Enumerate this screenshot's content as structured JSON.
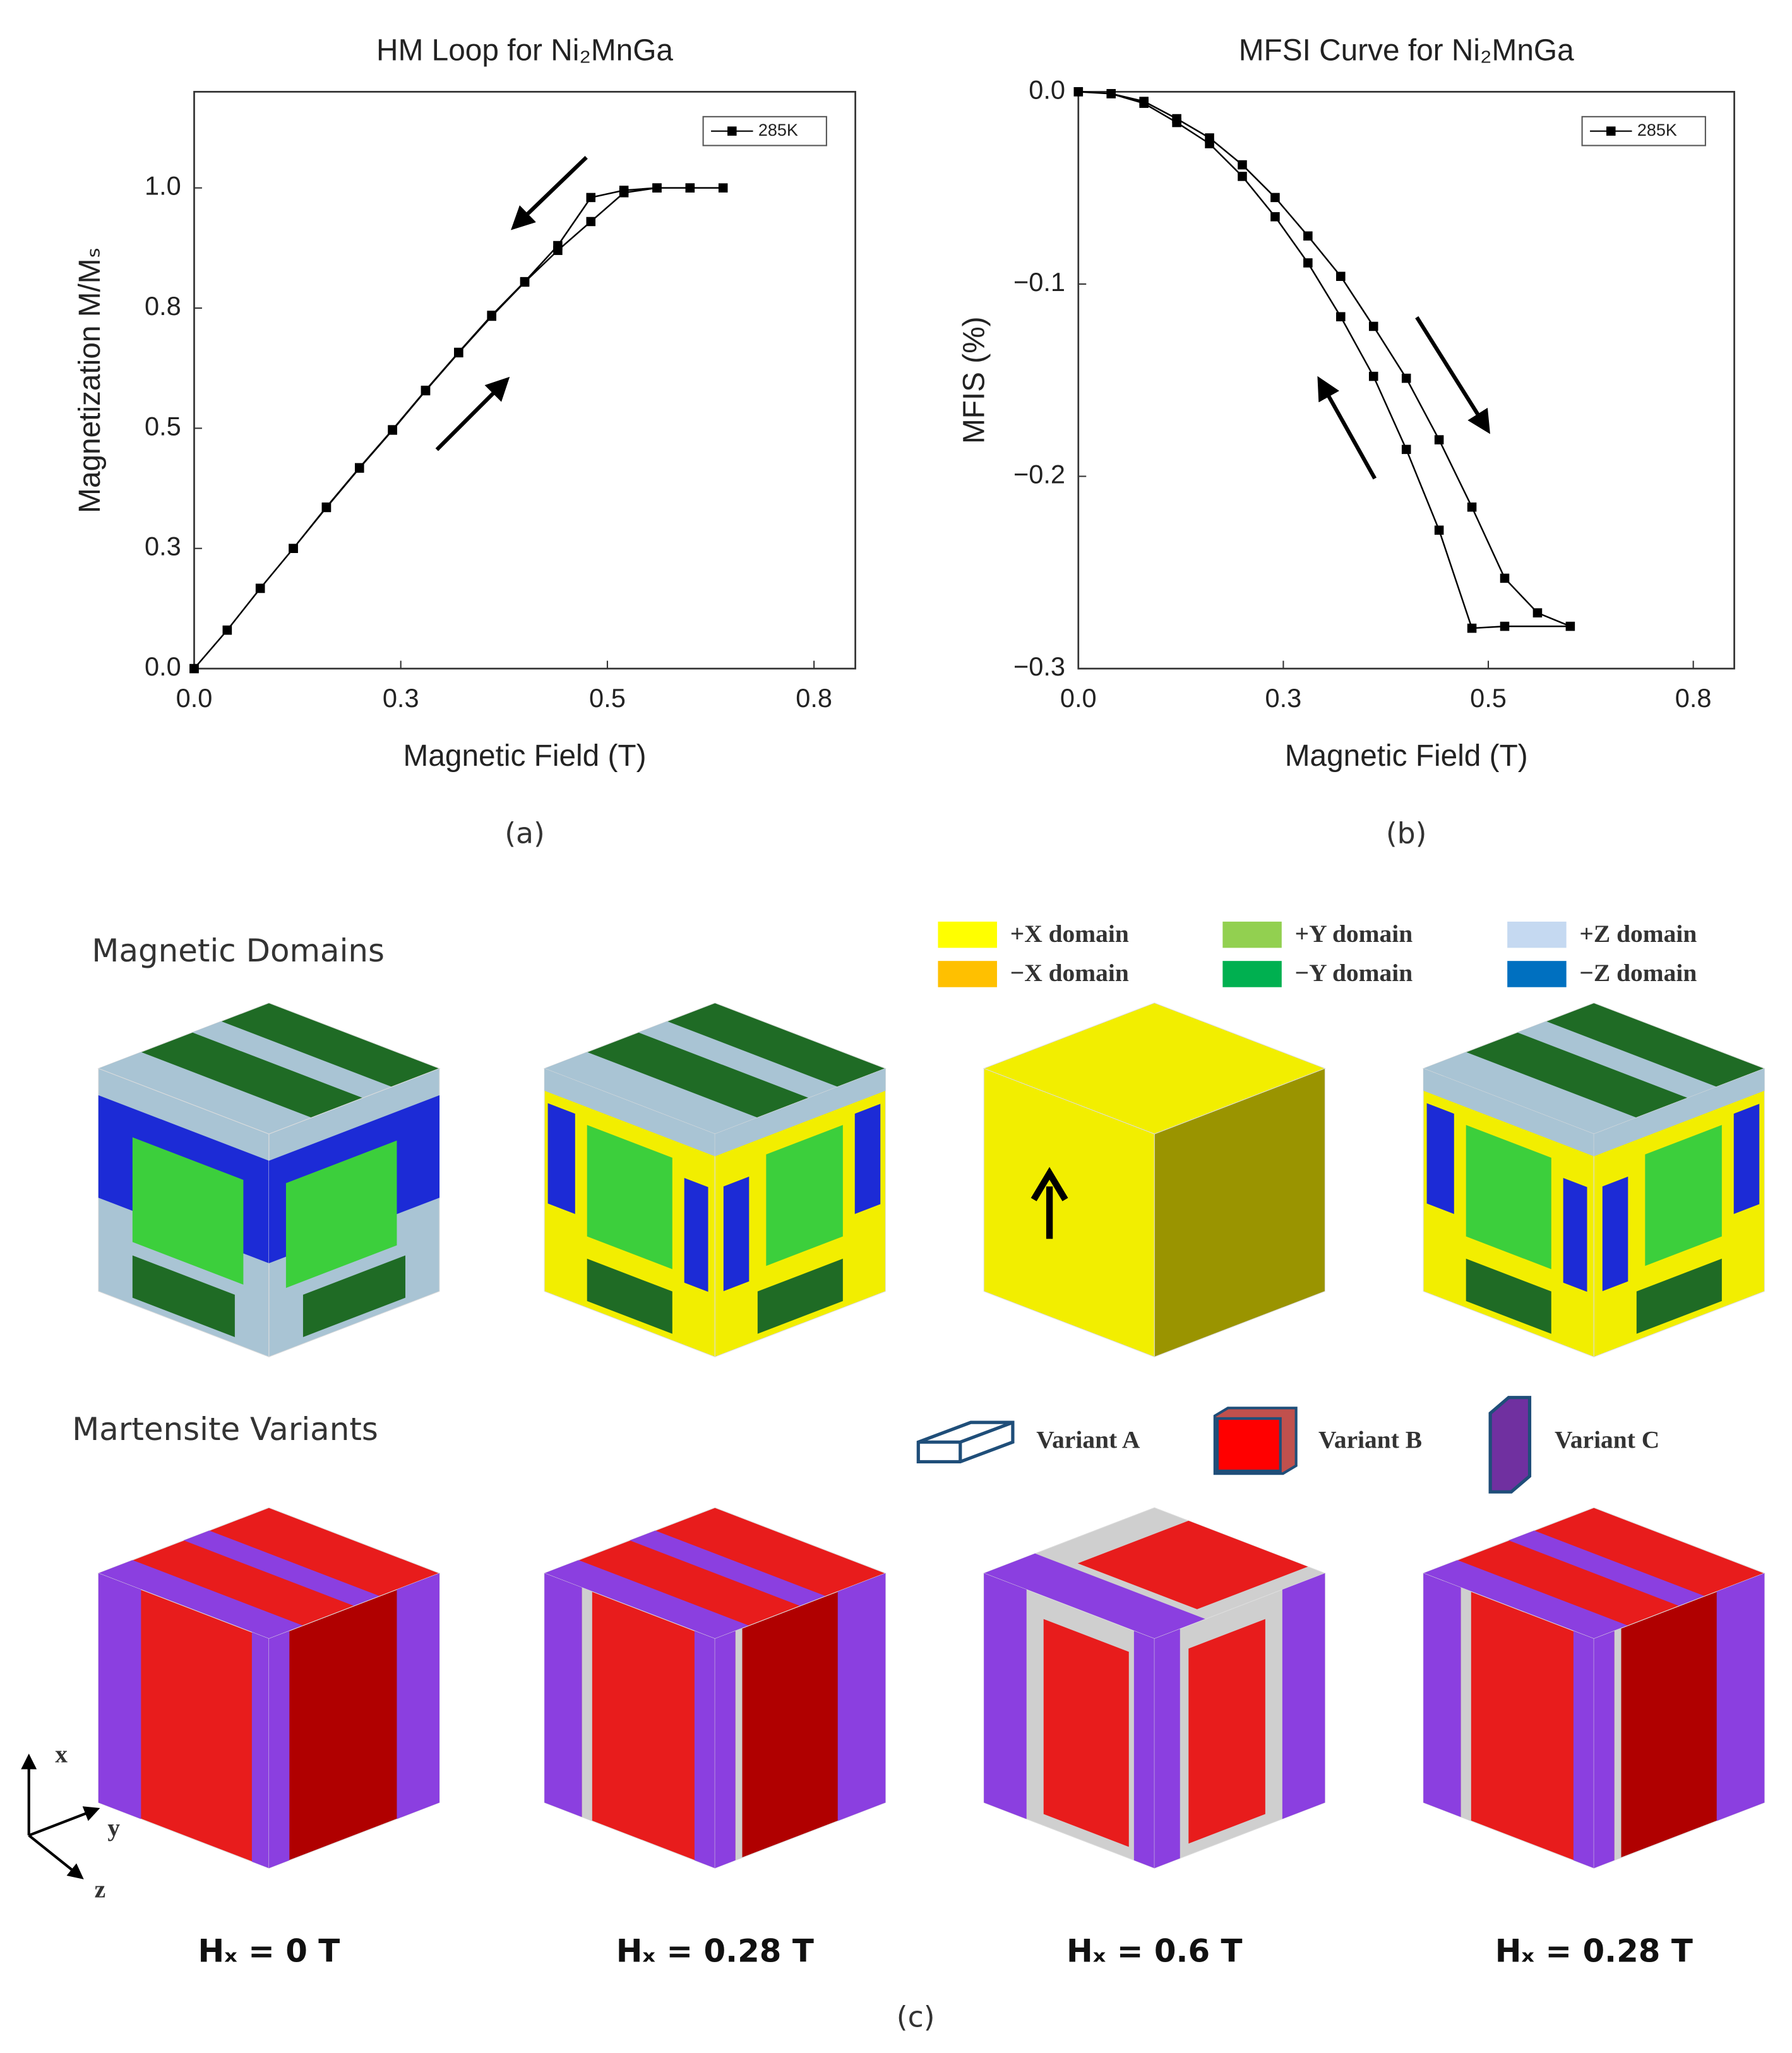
{
  "chart_data": [
    {
      "type": "line",
      "title": "HM Loop for Ni₂MnGa",
      "x_label": "Magnetic Field (T)",
      "y_label": "Magnetization M/Mₛ",
      "caption": "(a)",
      "x": [
        0,
        0.04,
        0.08,
        0.12,
        0.16,
        0.2,
        0.24,
        0.28,
        0.32,
        0.36,
        0.4,
        0.44,
        0.48,
        0.52,
        0.56,
        0.6,
        0.64,
        0.6,
        0.56,
        0.52,
        0.48,
        0.44,
        0.4,
        0.36,
        0.32,
        0.28,
        0.24,
        0.2,
        0.16,
        0.12,
        0.08,
        0.04,
        0
      ],
      "series": [
        {
          "name": "285K",
          "color": "#000000",
          "values": [
            0,
            0.08,
            0.167,
            0.25,
            0.335,
            0.417,
            0.496,
            0.578,
            0.657,
            0.733,
            0.804,
            0.87,
            0.93,
            0.99,
            1.0,
            1.0,
            1.0,
            1.0,
            1.0,
            0.995,
            0.98,
            0.88,
            0.805,
            0.735,
            0.658,
            0.579,
            0.497,
            0.418,
            0.336,
            0.25,
            0.167,
            0.08,
            0
          ]
        }
      ],
      "xlim": [
        0,
        0.8
      ],
      "xticks": [
        {
          "value": 0,
          "label": "0.0"
        },
        {
          "value": 0.25,
          "label": "0.3"
        },
        {
          "value": 0.5,
          "label": "0.5"
        },
        {
          "value": 0.75,
          "label": "0.8"
        }
      ],
      "ylim": [
        0,
        1.2
      ],
      "yticks": [
        {
          "value": 0,
          "label": "0.0"
        },
        {
          "value": 0.25,
          "label": "0.3"
        },
        {
          "value": 0.5,
          "label": "0.5"
        },
        {
          "value": 0.75,
          "label": "0.8"
        },
        {
          "value": 1,
          "label": "1.0"
        }
      ],
      "legend": "upper right",
      "grid": false
    },
    {
      "type": "line",
      "title": "MFSI Curve for Ni₂MnGa",
      "x_label": "Magnetic Field (T)",
      "y_label": "MFIS (%)",
      "caption": "(b)",
      "x": [
        0,
        0.04,
        0.08,
        0.12,
        0.16,
        0.2,
        0.24,
        0.28,
        0.32,
        0.36,
        0.4,
        0.44,
        0.48,
        0.52,
        0.56,
        0.6,
        0.52,
        0.48,
        0.44,
        0.4,
        0.36,
        0.32,
        0.28,
        0.24,
        0.2,
        0.16,
        0.12,
        0.08,
        0.04,
        0
      ],
      "series": [
        {
          "name": "285K",
          "color": "#000000",
          "values": [
            0,
            -0.001,
            -0.005,
            -0.014,
            -0.024,
            -0.038,
            -0.055,
            -0.075,
            -0.096,
            -0.122,
            -0.149,
            -0.181,
            -0.216,
            -0.253,
            -0.271,
            -0.278,
            -0.278,
            -0.279,
            -0.228,
            -0.186,
            -0.148,
            -0.117,
            -0.089,
            -0.065,
            -0.044,
            -0.027,
            -0.016,
            -0.006,
            -0.001,
            0
          ]
        }
      ],
      "xlim": [
        0,
        0.8
      ],
      "xticks": [
        {
          "value": 0,
          "label": "0.0"
        },
        {
          "value": 0.25,
          "label": "0.3"
        },
        {
          "value": 0.5,
          "label": "0.5"
        },
        {
          "value": 0.75,
          "label": "0.8"
        }
      ],
      "ylim": [
        -0.3,
        0
      ],
      "yticks": [
        {
          "value": 0,
          "label": "0.0"
        },
        {
          "value": -0.1,
          "label": "−0.1"
        },
        {
          "value": -0.2,
          "label": "−0.2"
        },
        {
          "value": -0.3,
          "label": "−0.3"
        }
      ],
      "legend": "upper right",
      "grid": false
    }
  ],
  "figure_c": {
    "caption": "(c)",
    "row_labels": [
      "Magnetic Domains",
      "Martensite Variants"
    ],
    "domain_legend": [
      {
        "label": "+X domain",
        "color": "#ffff00"
      },
      {
        "label": "−X domain",
        "color": "#ffc000"
      },
      {
        "label": "+Y domain",
        "color": "#92d050"
      },
      {
        "label": "−Y domain",
        "color": "#00b050"
      },
      {
        "label": "+Z domain",
        "color": "#c5d9f1"
      },
      {
        "label": "−Z domain",
        "color": "#0070c0"
      }
    ],
    "variant_legend": [
      "Variant A",
      "Variant B",
      "Variant C"
    ],
    "field_labels": [
      "Hₓ = 0 T",
      "Hₓ = 0.28 T",
      "Hₓ = 0.6 T",
      "Hₓ = 0.28 T"
    ],
    "axis_labels": [
      "x",
      "y",
      "z"
    ]
  }
}
